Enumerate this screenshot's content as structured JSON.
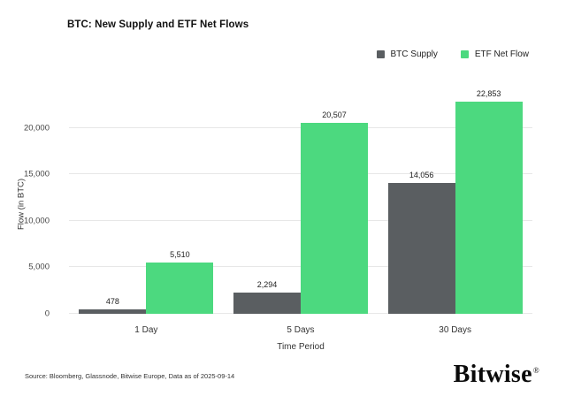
{
  "chart_data": {
    "type": "bar",
    "title": "BTC: New Supply and ETF Net Flows",
    "categories": [
      "1 Day",
      "5 Days",
      "30 Days"
    ],
    "series": [
      {
        "name": "BTC Supply",
        "color": "#5a5e61",
        "values": [
          478,
          2294,
          14056
        ],
        "labels": [
          "478",
          "2,294",
          "14,056"
        ]
      },
      {
        "name": "ETF Net Flow",
        "color": "#4cd97f",
        "values": [
          5510,
          20507,
          22853
        ],
        "labels": [
          "5,510",
          "20,507",
          "22,853"
        ]
      }
    ],
    "xlabel": "Time Period",
    "ylabel": "Flow (in BTC)",
    "ylim": [
      0,
      23500
    ],
    "yticks": [
      {
        "value": 0,
        "label": "0"
      },
      {
        "value": 5000,
        "label": "5,000"
      },
      {
        "value": 10000,
        "label": "10,000"
      },
      {
        "value": 15000,
        "label": "15,000"
      },
      {
        "value": 20000,
        "label": "20,000"
      }
    ],
    "grid": "horizontal",
    "legend_position": "top-right"
  },
  "footer": {
    "source": "Source: Bloomberg, Glassnode, Bitwise Europe, Data as of 2025-09-14",
    "brand": "Bitwise",
    "brand_mark": "®"
  }
}
